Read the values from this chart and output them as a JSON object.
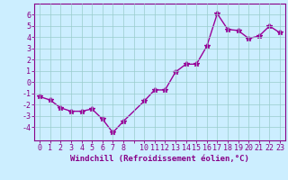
{
  "x": [
    0,
    1,
    2,
    3,
    4,
    5,
    6,
    7,
    8,
    10,
    11,
    12,
    13,
    14,
    15,
    16,
    17,
    18,
    19,
    20,
    21,
    22,
    23
  ],
  "y": [
    -1.3,
    -1.6,
    -2.3,
    -2.6,
    -2.6,
    -2.4,
    -3.3,
    -4.5,
    -3.5,
    -1.7,
    -0.7,
    -0.7,
    0.9,
    1.6,
    1.6,
    3.2,
    6.1,
    4.7,
    4.6,
    3.9,
    4.1,
    5.0,
    4.4
  ],
  "line_color": "#990099",
  "marker": "*",
  "markersize": 4,
  "linewidth": 1.0,
  "bg_color": "#cceeff",
  "grid_color": "#99cccc",
  "xlabel": "Windchill (Refroidissement éolien,°C)",
  "xlabel_fontsize": 6.5,
  "ytick_vals": [
    -4,
    -3,
    -2,
    -1,
    0,
    1,
    2,
    3,
    4,
    5,
    6
  ],
  "ylim": [
    -5.2,
    7.0
  ],
  "xlim": [
    -0.5,
    23.5
  ],
  "tick_color": "#880088",
  "tick_fontsize": 6,
  "spine_color": "#880088"
}
